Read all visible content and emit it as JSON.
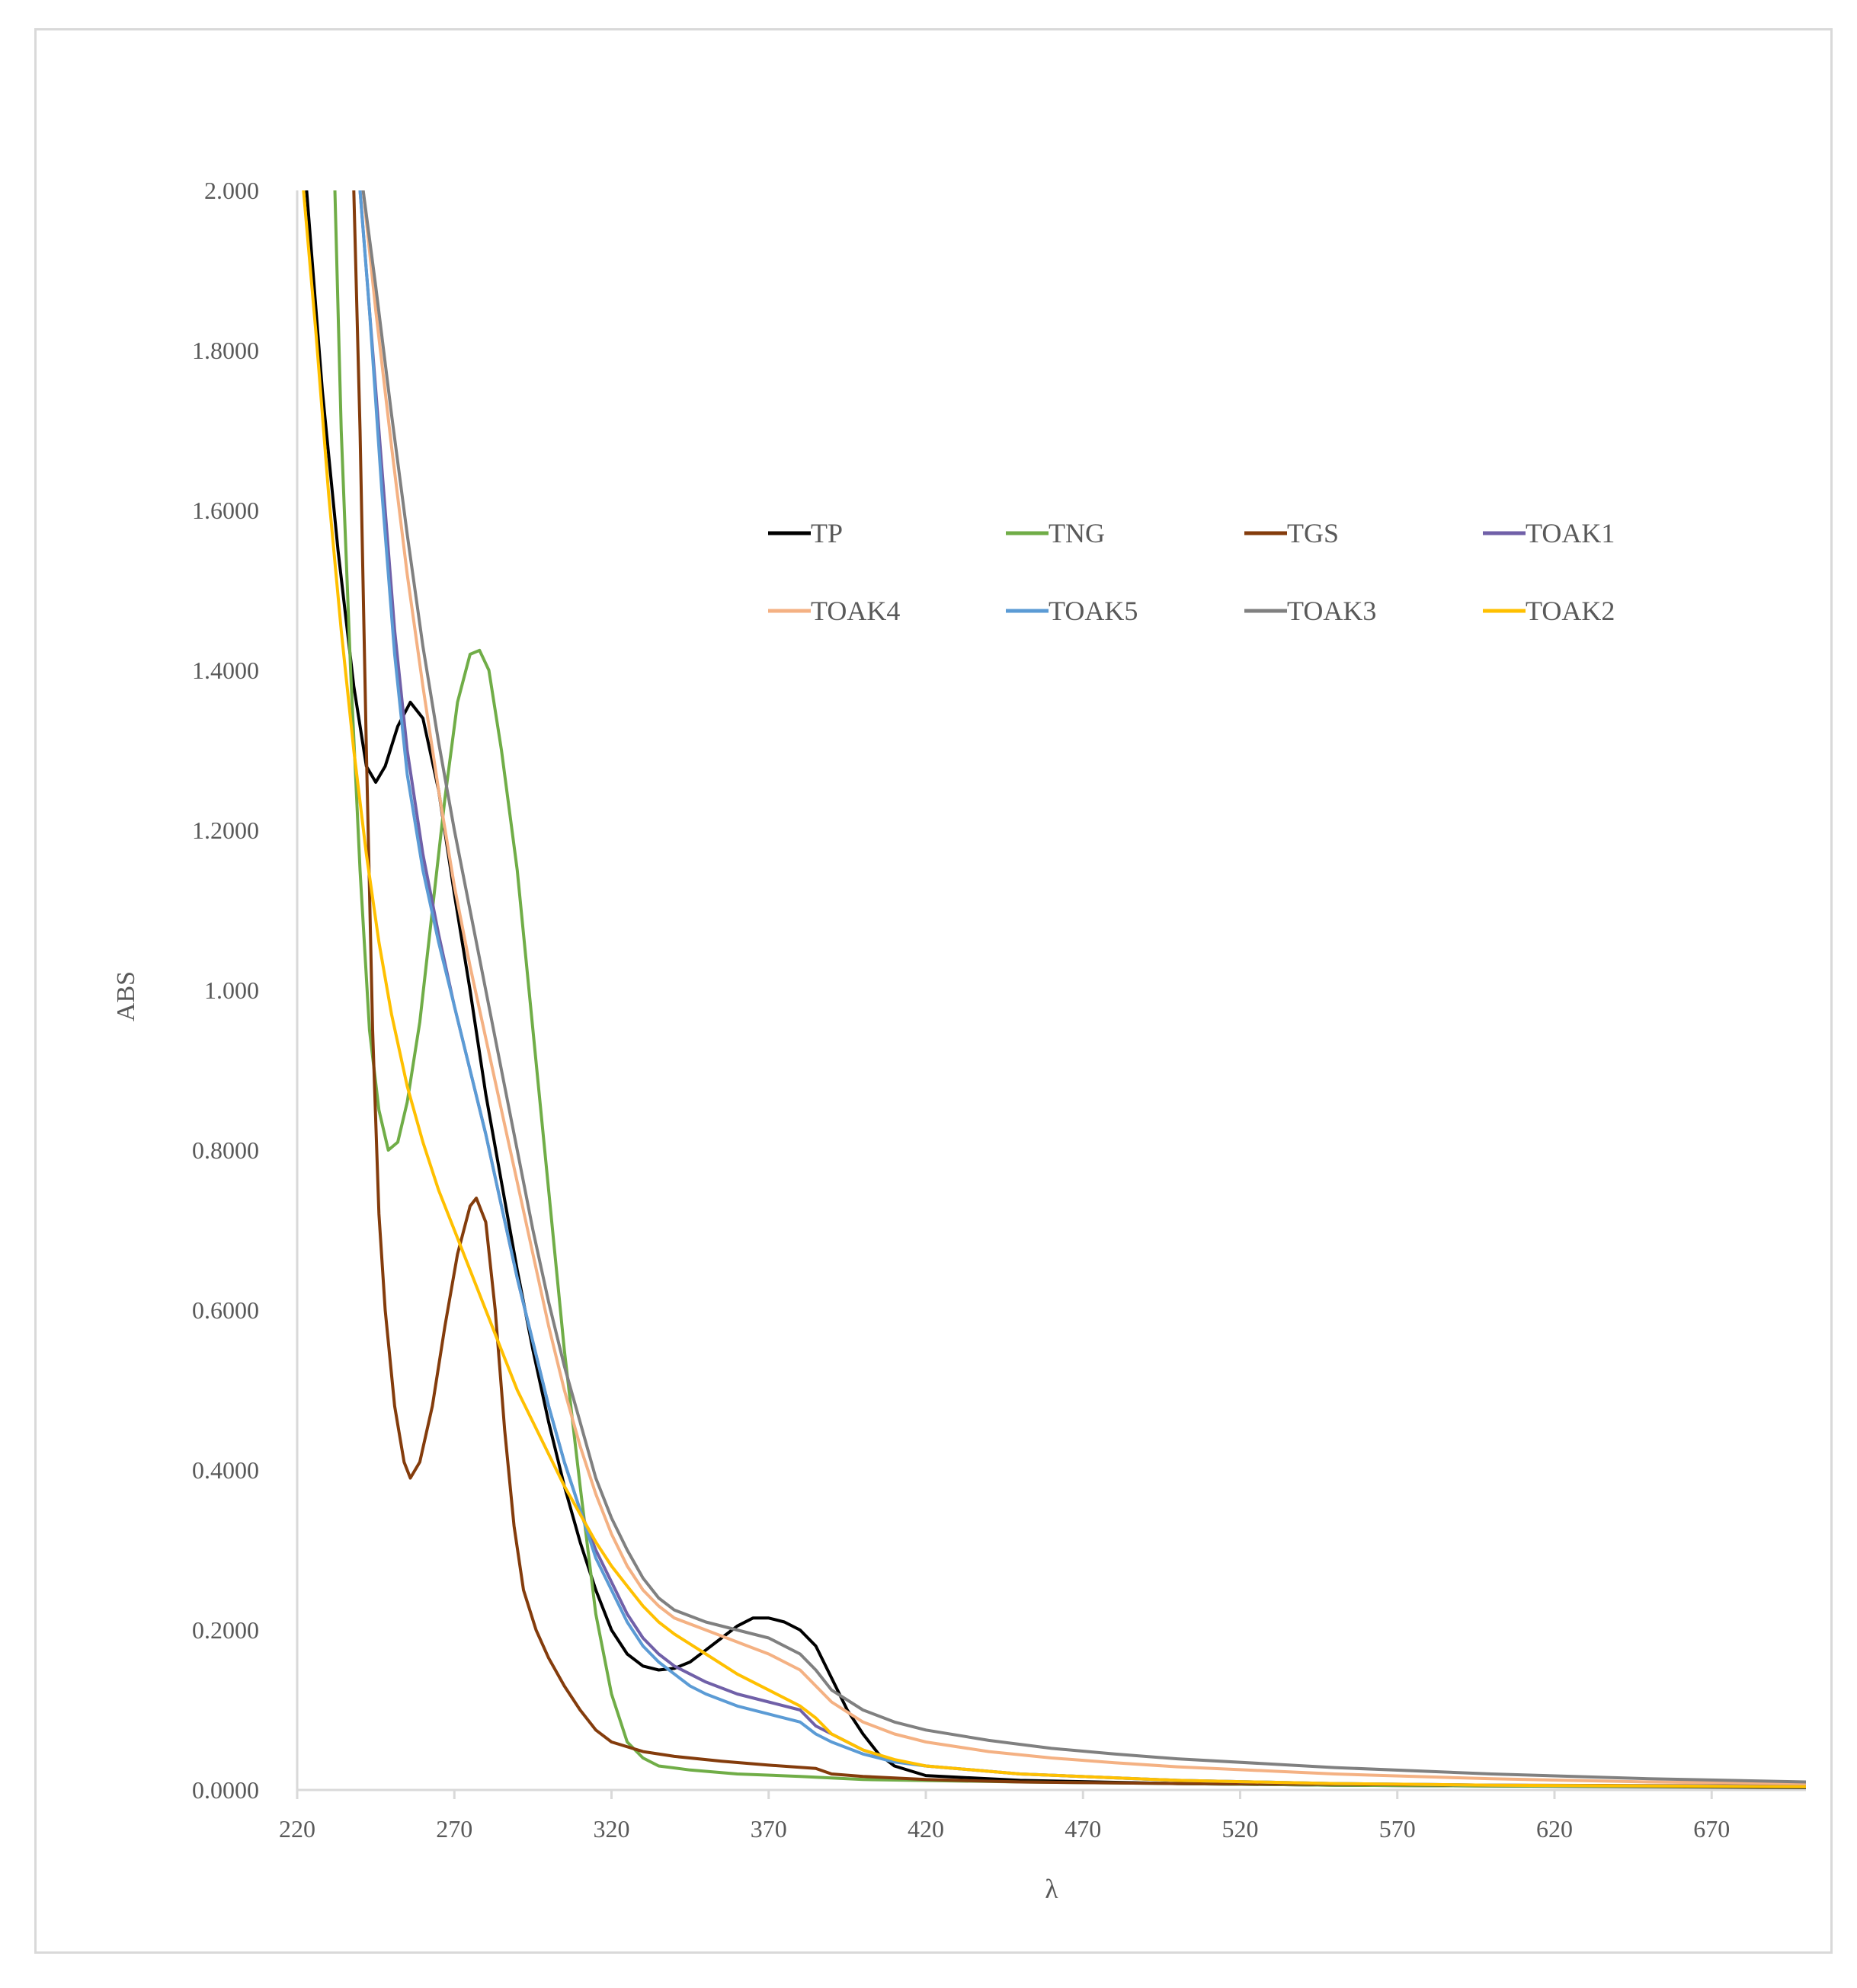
{
  "chart_data": {
    "type": "line",
    "xlabel": "λ",
    "ylabel": "ABS",
    "xlim": [
      220,
      700
    ],
    "ylim": [
      0,
      2.0
    ],
    "x_ticks": [
      "220",
      "270",
      "320",
      "370",
      "420",
      "470",
      "520",
      "570",
      "620",
      "670"
    ],
    "y_ticks": [
      "0.0000",
      "0.2000",
      "0.4000",
      "0.6000",
      "0.8000",
      "1.000",
      "1.2000",
      "1.4000",
      "1.6000",
      "1.8000",
      "2.000"
    ],
    "grid": false,
    "legend_position": "top-right, inside plot",
    "series": [
      {
        "name": "TP",
        "color": "#000000",
        "points": [
          [
            223,
            2.0
          ],
          [
            228,
            1.75
          ],
          [
            233,
            1.55
          ],
          [
            238,
            1.38
          ],
          [
            242,
            1.28
          ],
          [
            245,
            1.26
          ],
          [
            248,
            1.28
          ],
          [
            252,
            1.33
          ],
          [
            256,
            1.36
          ],
          [
            260,
            1.34
          ],
          [
            265,
            1.25
          ],
          [
            270,
            1.12
          ],
          [
            275,
            1.0
          ],
          [
            280,
            0.87
          ],
          [
            285,
            0.76
          ],
          [
            290,
            0.65
          ],
          [
            295,
            0.55
          ],
          [
            300,
            0.46
          ],
          [
            305,
            0.38
          ],
          [
            310,
            0.31
          ],
          [
            315,
            0.25
          ],
          [
            320,
            0.2
          ],
          [
            325,
            0.17
          ],
          [
            330,
            0.155
          ],
          [
            335,
            0.15
          ],
          [
            340,
            0.152
          ],
          [
            345,
            0.16
          ],
          [
            350,
            0.175
          ],
          [
            355,
            0.19
          ],
          [
            360,
            0.205
          ],
          [
            365,
            0.215
          ],
          [
            370,
            0.215
          ],
          [
            375,
            0.21
          ],
          [
            380,
            0.2
          ],
          [
            385,
            0.18
          ],
          [
            390,
            0.14
          ],
          [
            395,
            0.1
          ],
          [
            400,
            0.07
          ],
          [
            405,
            0.045
          ],
          [
            410,
            0.03
          ],
          [
            420,
            0.018
          ],
          [
            450,
            0.012
          ],
          [
            500,
            0.008
          ],
          [
            550,
            0.006
          ],
          [
            600,
            0.005
          ],
          [
            650,
            0.004
          ],
          [
            700,
            0.003
          ]
        ]
      },
      {
        "name": "TNG",
        "color": "#70ad47",
        "points": [
          [
            232,
            2.0
          ],
          [
            234,
            1.7
          ],
          [
            237,
            1.4
          ],
          [
            240,
            1.15
          ],
          [
            243,
            0.95
          ],
          [
            246,
            0.85
          ],
          [
            249,
            0.8
          ],
          [
            252,
            0.81
          ],
          [
            255,
            0.86
          ],
          [
            259,
            0.96
          ],
          [
            263,
            1.1
          ],
          [
            267,
            1.24
          ],
          [
            271,
            1.36
          ],
          [
            275,
            1.42
          ],
          [
            278,
            1.425
          ],
          [
            281,
            1.4
          ],
          [
            285,
            1.3
          ],
          [
            290,
            1.15
          ],
          [
            295,
            0.95
          ],
          [
            300,
            0.75
          ],
          [
            305,
            0.55
          ],
          [
            310,
            0.38
          ],
          [
            315,
            0.22
          ],
          [
            320,
            0.12
          ],
          [
            325,
            0.06
          ],
          [
            330,
            0.04
          ],
          [
            335,
            0.03
          ],
          [
            345,
            0.025
          ],
          [
            360,
            0.02
          ],
          [
            380,
            0.017
          ],
          [
            400,
            0.013
          ],
          [
            450,
            0.01
          ],
          [
            500,
            0.008
          ],
          [
            550,
            0.006
          ],
          [
            600,
            0.005
          ],
          [
            700,
            0.004
          ]
        ]
      },
      {
        "name": "TGS",
        "color": "#843c0c",
        "points": [
          [
            238,
            2.0
          ],
          [
            240,
            1.7
          ],
          [
            242,
            1.3
          ],
          [
            244,
            0.95
          ],
          [
            246,
            0.72
          ],
          [
            248,
            0.6
          ],
          [
            251,
            0.48
          ],
          [
            254,
            0.41
          ],
          [
            256,
            0.39
          ],
          [
            259,
            0.41
          ],
          [
            263,
            0.48
          ],
          [
            267,
            0.58
          ],
          [
            271,
            0.67
          ],
          [
            275,
            0.73
          ],
          [
            277,
            0.74
          ],
          [
            280,
            0.71
          ],
          [
            283,
            0.6
          ],
          [
            286,
            0.45
          ],
          [
            289,
            0.33
          ],
          [
            292,
            0.25
          ],
          [
            296,
            0.2
          ],
          [
            300,
            0.165
          ],
          [
            305,
            0.13
          ],
          [
            310,
            0.1
          ],
          [
            315,
            0.075
          ],
          [
            320,
            0.06
          ],
          [
            330,
            0.048
          ],
          [
            340,
            0.042
          ],
          [
            355,
            0.036
          ],
          [
            370,
            0.031
          ],
          [
            385,
            0.027
          ],
          [
            390,
            0.02
          ],
          [
            400,
            0.017
          ],
          [
            420,
            0.013
          ],
          [
            450,
            0.01
          ],
          [
            500,
            0.008
          ],
          [
            600,
            0.006
          ],
          [
            700,
            0.005
          ]
        ]
      },
      {
        "name": "TOAK1",
        "color": "#7060a8",
        "points": [
          [
            240,
            2.0
          ],
          [
            243,
            1.85
          ],
          [
            247,
            1.65
          ],
          [
            251,
            1.45
          ],
          [
            255,
            1.3
          ],
          [
            260,
            1.17
          ],
          [
            265,
            1.07
          ],
          [
            270,
            0.98
          ],
          [
            275,
            0.9
          ],
          [
            280,
            0.82
          ],
          [
            285,
            0.73
          ],
          [
            290,
            0.64
          ],
          [
            295,
            0.56
          ],
          [
            300,
            0.48
          ],
          [
            305,
            0.41
          ],
          [
            310,
            0.35
          ],
          [
            315,
            0.3
          ],
          [
            320,
            0.26
          ],
          [
            325,
            0.22
          ],
          [
            330,
            0.19
          ],
          [
            335,
            0.17
          ],
          [
            340,
            0.155
          ],
          [
            345,
            0.145
          ],
          [
            350,
            0.135
          ],
          [
            360,
            0.12
          ],
          [
            370,
            0.11
          ],
          [
            380,
            0.1
          ],
          [
            385,
            0.08
          ],
          [
            390,
            0.07
          ],
          [
            400,
            0.05
          ],
          [
            410,
            0.037
          ],
          [
            420,
            0.03
          ],
          [
            450,
            0.02
          ],
          [
            500,
            0.012
          ],
          [
            550,
            0.008
          ],
          [
            600,
            0.006
          ],
          [
            650,
            0.005
          ],
          [
            700,
            0.005
          ]
        ]
      },
      {
        "name": "TOAK4",
        "color": "#f4b183",
        "points": [
          [
            241,
            2.0
          ],
          [
            245,
            1.85
          ],
          [
            250,
            1.68
          ],
          [
            255,
            1.52
          ],
          [
            260,
            1.38
          ],
          [
            265,
            1.25
          ],
          [
            270,
            1.13
          ],
          [
            275,
            1.03
          ],
          [
            280,
            0.94
          ],
          [
            285,
            0.85
          ],
          [
            290,
            0.76
          ],
          [
            295,
            0.67
          ],
          [
            300,
            0.58
          ],
          [
            305,
            0.5
          ],
          [
            310,
            0.43
          ],
          [
            315,
            0.37
          ],
          [
            320,
            0.32
          ],
          [
            325,
            0.28
          ],
          [
            330,
            0.25
          ],
          [
            335,
            0.23
          ],
          [
            340,
            0.215
          ],
          [
            350,
            0.2
          ],
          [
            360,
            0.185
          ],
          [
            370,
            0.17
          ],
          [
            380,
            0.15
          ],
          [
            390,
            0.11
          ],
          [
            400,
            0.085
          ],
          [
            410,
            0.07
          ],
          [
            420,
            0.06
          ],
          [
            440,
            0.048
          ],
          [
            460,
            0.04
          ],
          [
            480,
            0.034
          ],
          [
            500,
            0.029
          ],
          [
            550,
            0.02
          ],
          [
            600,
            0.014
          ],
          [
            650,
            0.01
          ],
          [
            700,
            0.008
          ]
        ]
      },
      {
        "name": "TOAK5",
        "color": "#5b9bd5",
        "points": [
          [
            240,
            2.0
          ],
          [
            243,
            1.85
          ],
          [
            247,
            1.62
          ],
          [
            251,
            1.42
          ],
          [
            255,
            1.27
          ],
          [
            260,
            1.15
          ],
          [
            265,
            1.06
          ],
          [
            270,
            0.98
          ],
          [
            275,
            0.9
          ],
          [
            280,
            0.82
          ],
          [
            285,
            0.73
          ],
          [
            290,
            0.64
          ],
          [
            295,
            0.56
          ],
          [
            300,
            0.48
          ],
          [
            305,
            0.41
          ],
          [
            310,
            0.35
          ],
          [
            315,
            0.29
          ],
          [
            320,
            0.25
          ],
          [
            325,
            0.21
          ],
          [
            330,
            0.18
          ],
          [
            335,
            0.16
          ],
          [
            340,
            0.145
          ],
          [
            345,
            0.13
          ],
          [
            350,
            0.12
          ],
          [
            360,
            0.105
          ],
          [
            370,
            0.095
          ],
          [
            380,
            0.085
          ],
          [
            385,
            0.07
          ],
          [
            390,
            0.06
          ],
          [
            400,
            0.045
          ],
          [
            410,
            0.035
          ],
          [
            420,
            0.03
          ],
          [
            450,
            0.02
          ],
          [
            500,
            0.012
          ],
          [
            550,
            0.008
          ],
          [
            600,
            0.006
          ],
          [
            700,
            0.004
          ]
        ]
      },
      {
        "name": "TOAK3",
        "color": "#808080",
        "points": [
          [
            241,
            2.0
          ],
          [
            245,
            1.88
          ],
          [
            250,
            1.72
          ],
          [
            255,
            1.57
          ],
          [
            260,
            1.43
          ],
          [
            265,
            1.31
          ],
          [
            270,
            1.2
          ],
          [
            275,
            1.1
          ],
          [
            280,
            1.0
          ],
          [
            285,
            0.9
          ],
          [
            290,
            0.8
          ],
          [
            295,
            0.7
          ],
          [
            300,
            0.61
          ],
          [
            305,
            0.53
          ],
          [
            310,
            0.46
          ],
          [
            315,
            0.39
          ],
          [
            320,
            0.34
          ],
          [
            325,
            0.3
          ],
          [
            330,
            0.265
          ],
          [
            335,
            0.24
          ],
          [
            340,
            0.225
          ],
          [
            350,
            0.21
          ],
          [
            360,
            0.2
          ],
          [
            370,
            0.19
          ],
          [
            380,
            0.17
          ],
          [
            385,
            0.15
          ],
          [
            390,
            0.125
          ],
          [
            400,
            0.1
          ],
          [
            410,
            0.085
          ],
          [
            420,
            0.075
          ],
          [
            440,
            0.062
          ],
          [
            460,
            0.052
          ],
          [
            480,
            0.045
          ],
          [
            500,
            0.039
          ],
          [
            550,
            0.028
          ],
          [
            600,
            0.02
          ],
          [
            650,
            0.014
          ],
          [
            700,
            0.01
          ]
        ]
      },
      {
        "name": "TOAK2",
        "color": "#ffc000",
        "points": [
          [
            222,
            2.0
          ],
          [
            226,
            1.82
          ],
          [
            230,
            1.62
          ],
          [
            234,
            1.45
          ],
          [
            238,
            1.3
          ],
          [
            242,
            1.17
          ],
          [
            246,
            1.06
          ],
          [
            250,
            0.97
          ],
          [
            255,
            0.88
          ],
          [
            260,
            0.81
          ],
          [
            265,
            0.75
          ],
          [
            270,
            0.7
          ],
          [
            275,
            0.65
          ],
          [
            280,
            0.6
          ],
          [
            285,
            0.55
          ],
          [
            290,
            0.5
          ],
          [
            295,
            0.46
          ],
          [
            300,
            0.42
          ],
          [
            305,
            0.38
          ],
          [
            310,
            0.345
          ],
          [
            315,
            0.31
          ],
          [
            320,
            0.28
          ],
          [
            325,
            0.255
          ],
          [
            330,
            0.23
          ],
          [
            335,
            0.21
          ],
          [
            340,
            0.195
          ],
          [
            350,
            0.17
          ],
          [
            360,
            0.145
          ],
          [
            370,
            0.125
          ],
          [
            380,
            0.105
          ],
          [
            385,
            0.09
          ],
          [
            390,
            0.07
          ],
          [
            400,
            0.05
          ],
          [
            410,
            0.038
          ],
          [
            420,
            0.03
          ],
          [
            450,
            0.02
          ],
          [
            500,
            0.012
          ],
          [
            550,
            0.008
          ],
          [
            600,
            0.006
          ],
          [
            700,
            0.004
          ]
        ]
      }
    ]
  }
}
